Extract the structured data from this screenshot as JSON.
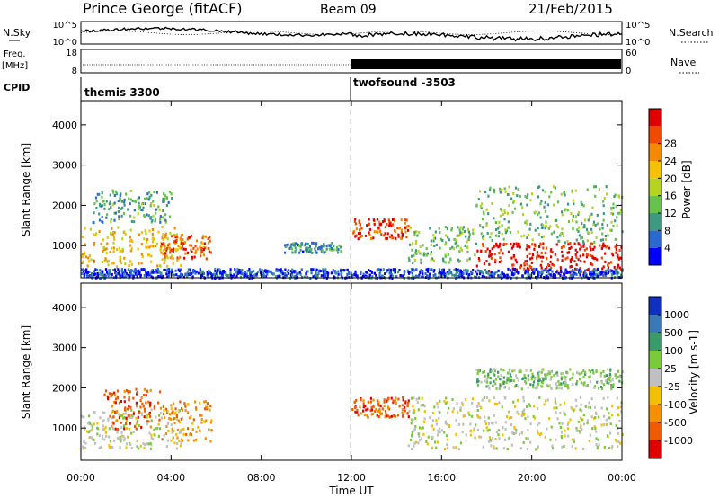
{
  "header": {
    "station": "Prince George (fitACF)",
    "beam": "Beam 09",
    "date": "21/Feb/2015"
  },
  "panels": {
    "nsky": {
      "label": "N.Sky",
      "right_label": "N.Search",
      "tick_top": "10^5",
      "tick_bottom": "10^0",
      "right_tick_top": "10^5",
      "right_tick_bottom": "10^0"
    },
    "freq": {
      "label_line1": "Freq.",
      "label_line2": "[MHz]",
      "tick_top": "18",
      "tick_bottom": "8",
      "right_label": "Nave",
      "right_tick_top": "60",
      "right_tick_bottom": "0"
    },
    "cpid": {
      "label": "CPID",
      "mode1": "themis 3300",
      "mode2": "twofsound -3503"
    }
  },
  "chart_data": [
    {
      "type": "heatmap",
      "name": "power",
      "ylabel": "Slant Range [km]",
      "y_ticks": [
        "1000",
        "2000",
        "3000",
        "4000"
      ],
      "ylim": [
        200,
        4600
      ],
      "colorbar_label": "Power [dB]",
      "colorbar_ticks": [
        "4",
        "8",
        "12",
        "16",
        "20",
        "24",
        "28"
      ],
      "colorbar_range": [
        0,
        32
      ],
      "colorbar_colors": [
        "#0000ff",
        "#2a6ad0",
        "#3d9a80",
        "#66c24a",
        "#b6d320",
        "#f6c200",
        "#f58a00",
        "#f04a00",
        "#e00000"
      ],
      "regions": [
        {
          "t": [
            0.0,
            4.5
          ],
          "r": [
            500,
            1500
          ],
          "level": 20
        },
        {
          "t": [
            0.5,
            4.0
          ],
          "r": [
            1600,
            2400
          ],
          "level": 10
        },
        {
          "t": [
            3.5,
            5.8
          ],
          "r": [
            700,
            1300
          ],
          "level": 26
        },
        {
          "t": [
            9.0,
            11.5
          ],
          "r": [
            850,
            1100
          ],
          "level": 8
        },
        {
          "t": [
            12.0,
            14.5
          ],
          "r": [
            1200,
            1700
          ],
          "level": 28
        },
        {
          "t": [
            14.5,
            17.5
          ],
          "r": [
            600,
            1500
          ],
          "level": 12
        },
        {
          "t": [
            17.5,
            24.0
          ],
          "r": [
            350,
            1100
          ],
          "level": 30
        },
        {
          "t": [
            17.5,
            24.0
          ],
          "r": [
            1100,
            2500
          ],
          "level": 12
        },
        {
          "t": [
            0.0,
            24.0
          ],
          "r": [
            220,
            450
          ],
          "level": 4
        }
      ]
    },
    {
      "type": "heatmap",
      "name": "velocity",
      "ylabel": "Slant Range [km]",
      "y_ticks": [
        "1000",
        "2000",
        "3000",
        "4000"
      ],
      "ylim": [
        200,
        4600
      ],
      "xlabel": "Time UT",
      "x_ticks": [
        "00:00",
        "04:00",
        "08:00",
        "12:00",
        "16:00",
        "20:00",
        "00:00"
      ],
      "xlim": [
        0,
        24
      ],
      "colorbar_label": "Velocity [m s-1]",
      "colorbar_ticks": [
        "1000",
        "500",
        "100",
        "25",
        "-25",
        "-100",
        "-500",
        "-1000"
      ],
      "colorbar_colors": [
        "#1030c0",
        "#3a78b8",
        "#3a9a6a",
        "#7acb3a",
        "#c0c0c0",
        "#f3c000",
        "#f59000",
        "#f05a00",
        "#e00000"
      ],
      "regions": [
        {
          "t": [
            0.0,
            4.5
          ],
          "r": [
            500,
            1500
          ],
          "cls": 4
        },
        {
          "t": [
            1.0,
            3.5
          ],
          "r": [
            1000,
            2000
          ],
          "cls": 7
        },
        {
          "t": [
            3.5,
            5.8
          ],
          "r": [
            700,
            1700
          ],
          "cls": 6
        },
        {
          "t": [
            12.0,
            14.5
          ],
          "r": [
            1300,
            1800
          ],
          "cls": 7
        },
        {
          "t": [
            14.5,
            24.0
          ],
          "r": [
            500,
            1800
          ],
          "cls": 4
        },
        {
          "t": [
            17.5,
            24.0
          ],
          "r": [
            2000,
            2500
          ],
          "cls": 3
        }
      ]
    }
  ]
}
